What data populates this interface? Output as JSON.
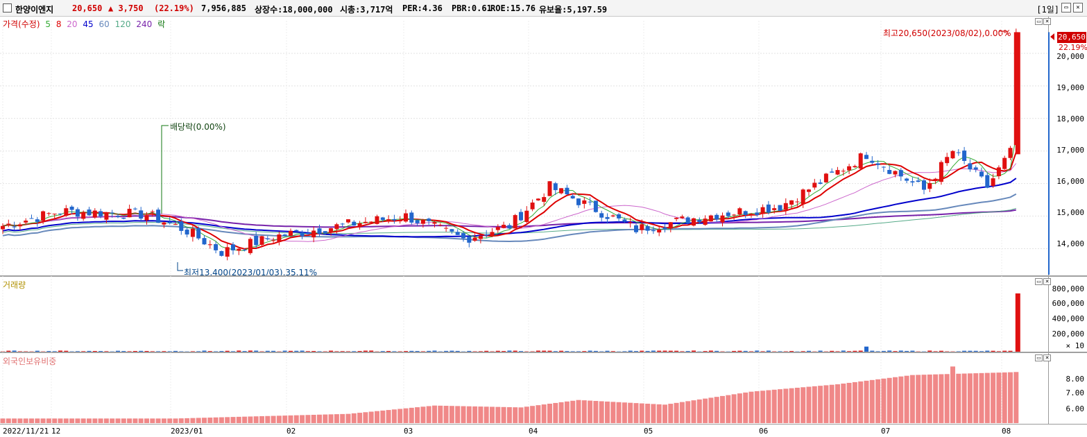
{
  "header": {
    "name": "한양이엔지",
    "price": "20,650",
    "change": "▲ 3,750",
    "change_pct": "(22.19%)",
    "volume": "7,956,885",
    "listed": "상장수:18,000,000",
    "mktcap": "시총:3,717억",
    "per": "PER:4.36",
    "pbr": "PBR:0.61",
    "roe": "ROE:15.76",
    "float": "유보율:5,197.59",
    "period": "[1일]"
  },
  "price_legend": {
    "main": "가격(수정)",
    "ma": [
      {
        "label": "5",
        "color": "#33aa33"
      },
      {
        "label": "8",
        "color": "#dd0000"
      },
      {
        "label": "20",
        "color": "#cc66cc"
      },
      {
        "label": "45",
        "color": "#0000cc"
      },
      {
        "label": "60",
        "color": "#6688bb"
      },
      {
        "label": "120",
        "color": "#55aa88"
      },
      {
        "label": "240",
        "color": "#7722aa"
      },
      {
        "label": "락",
        "color": "#117711"
      }
    ]
  },
  "annotations": {
    "high": "최고20,650(2023/08/02),0.00%",
    "low": "최저13,400(2023/01/03),35.11%",
    "dividend": "배당락(0.00%)",
    "last_price": "20,650",
    "last_pct": "22.19%"
  },
  "volume_legend": "거래량",
  "foreign_legend": "외국인보유비중",
  "volume_multiplier": "× 10",
  "price_axis": [
    "20,000",
    "19,000",
    "18,000",
    "17,000",
    "16,000",
    "15,000",
    "14,000"
  ],
  "volume_axis": [
    "800,000",
    "600,000",
    "400,000",
    "200,000"
  ],
  "foreign_axis": [
    "8.00",
    "7.00",
    "6.00"
  ],
  "x_axis": [
    "2022/11/21",
    "12",
    "2023/01",
    "02",
    "03",
    "04",
    "05",
    "06",
    "07",
    "08"
  ],
  "chart_data": {
    "type": "candlestick",
    "price_ylim": [
      13200,
      21000
    ],
    "last_close": 20650,
    "high": 20650,
    "low": 13400,
    "volume_ylim": [
      0,
      900000
    ],
    "last_volume": 795688,
    "foreign_ylim": [
      5.6,
      8.9
    ],
    "ma_last": {
      "45": 16200,
      "60": 15950,
      "120": 15400,
      "240": 14800
    }
  }
}
